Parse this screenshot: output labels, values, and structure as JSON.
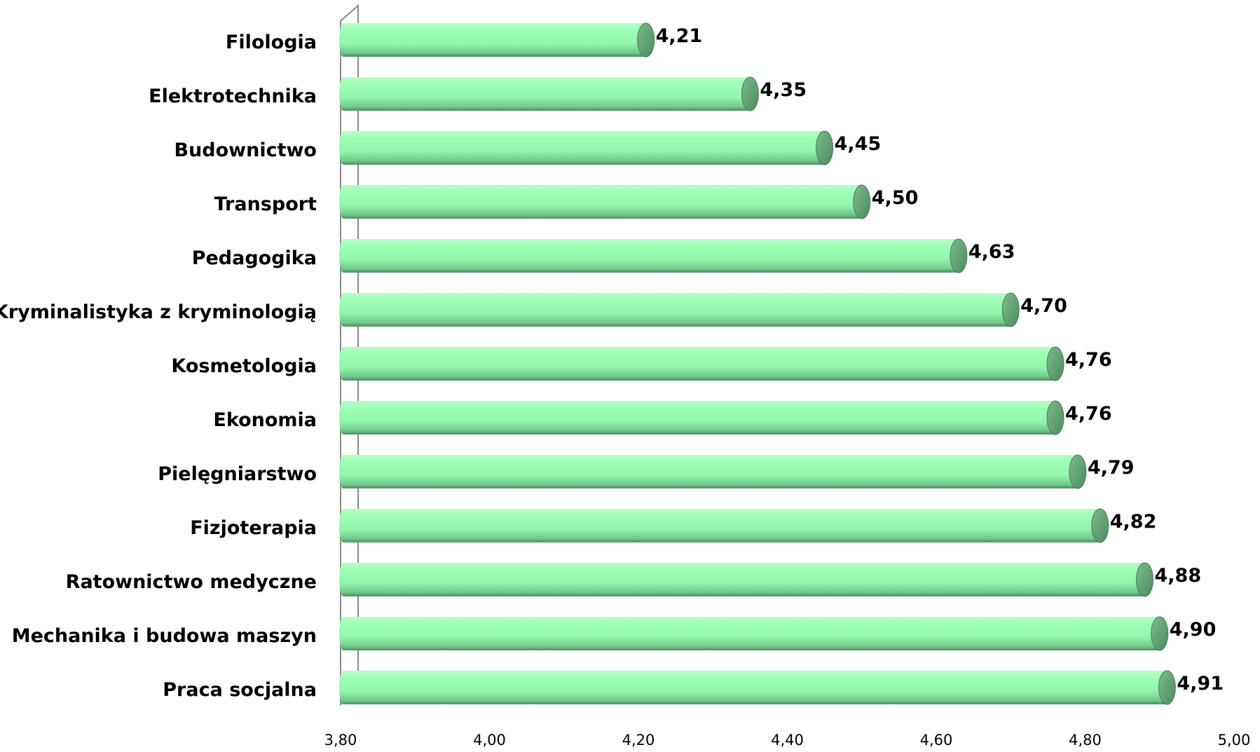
{
  "chart_data": {
    "type": "bar",
    "orientation": "horizontal",
    "style": "3d-cylinder",
    "title": "",
    "xlabel": "",
    "ylabel": "",
    "categories": [
      "Filologia",
      "Elektrotechnika",
      "Budownictwo",
      "Transport",
      "Pedagogika",
      "Kryminalistyka z kryminologią",
      "Kosmetologia",
      "Ekonomia",
      "Pielęgniarstwo",
      "Fizjoterapia",
      "Ratownictwo medyczne",
      "Mechanika i budowa maszyn",
      "Praca socjalna"
    ],
    "values": [
      4.21,
      4.35,
      4.45,
      4.5,
      4.63,
      4.7,
      4.76,
      4.76,
      4.79,
      4.82,
      4.88,
      4.9,
      4.91
    ],
    "value_labels": [
      "4,21",
      "4,35",
      "4,45",
      "4,50",
      "4,63",
      "4,70",
      "4,76",
      "4,76",
      "4,79",
      "4,82",
      "4,88",
      "4,90",
      "4,91"
    ],
    "xlim": [
      3.8,
      5.0
    ],
    "x_ticks": [
      "3,80",
      "4,00",
      "4,20",
      "4,40",
      "4,60",
      "4,80",
      "5,00"
    ],
    "grid": false,
    "legend": "none",
    "colors": {
      "bar_light": "#9cffb4",
      "bar_mid": "#8cf0a6",
      "bar_dark": "#5ea574",
      "cap": "#5f9a6f",
      "axis_wall": "#8a8a8a"
    }
  }
}
